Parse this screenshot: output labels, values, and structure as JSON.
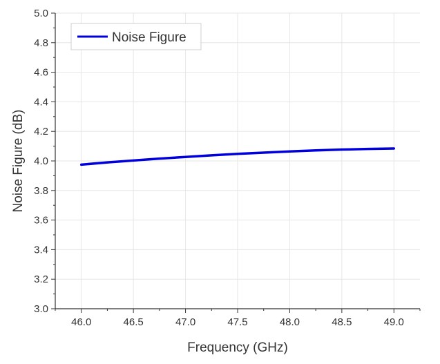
{
  "chart_data": {
    "type": "line",
    "title": "",
    "xlabel": "Frequency (GHz)",
    "ylabel": "Noise Figure (dB)",
    "xlim": [
      45.75,
      49.25
    ],
    "ylim": [
      3.0,
      5.0
    ],
    "x_ticks": [
      "46.0",
      "46.5",
      "47.0",
      "47.5",
      "48.0",
      "48.5",
      "49.0"
    ],
    "y_ticks": [
      "3.0",
      "3.2",
      "3.4",
      "3.6",
      "3.8",
      "4.0",
      "4.2",
      "4.4",
      "4.6",
      "4.8",
      "5.0"
    ],
    "grid": true,
    "legend_position": "top-left",
    "series": [
      {
        "name": "Noise Figure",
        "color": "#0000dd",
        "x": [
          46.0,
          46.25,
          46.5,
          46.75,
          47.0,
          47.25,
          47.5,
          47.75,
          48.0,
          48.25,
          48.5,
          48.75,
          49.0
        ],
        "y": [
          3.975,
          3.99,
          4.003,
          4.016,
          4.027,
          4.038,
          4.048,
          4.056,
          4.064,
          4.071,
          4.077,
          4.081,
          4.084
        ]
      }
    ]
  }
}
